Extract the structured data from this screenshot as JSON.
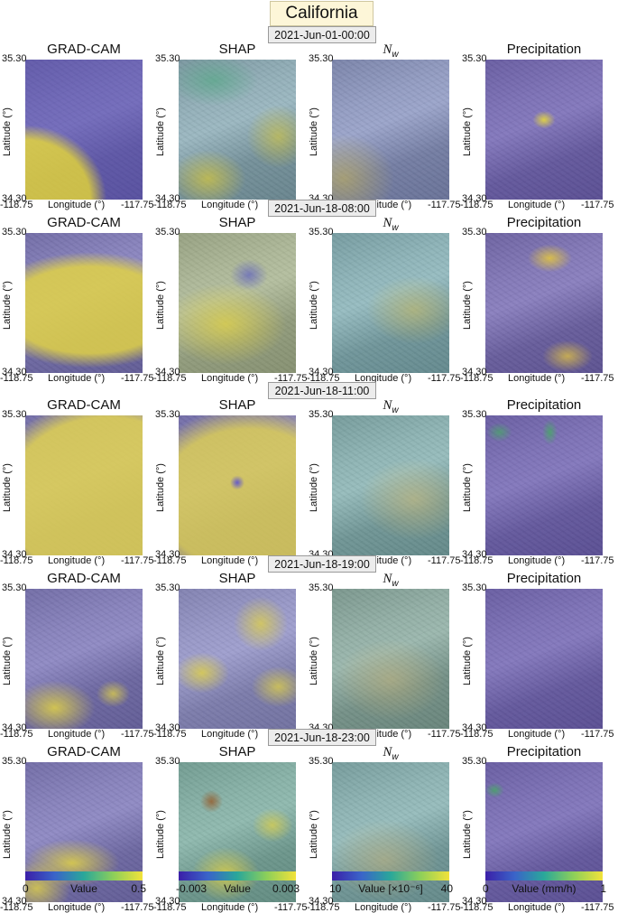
{
  "title": "California",
  "panel_titles": [
    "GRAD-CAM",
    "SHAP",
    "N",
    "w",
    "Precipitation"
  ],
  "axes": {
    "lat_top": "35.30",
    "lat_bottom": "34.30",
    "ylabel": "Latitude (°)",
    "lon_left": "-118.75",
    "lon_right": "-117.75",
    "xlabel": "Longitude (°)"
  },
  "rows": [
    {
      "timestamp": "2021-Jun-01-00:00"
    },
    {
      "timestamp": "2021-Jun-18-08:00"
    },
    {
      "timestamp": "2021-Jun-18-11:00"
    },
    {
      "timestamp": "2021-Jun-18-19:00"
    },
    {
      "timestamp": "2021-Jun-18-23:00"
    }
  ],
  "colorbars": [
    {
      "min": "0",
      "label": "Value",
      "max": "0.5"
    },
    {
      "min": "-0.003",
      "label": "Value",
      "max": "0.003"
    },
    {
      "min": "10",
      "label": "Value [×10⁻⁶]",
      "max": "40"
    },
    {
      "min": "0",
      "label": "Value (mm/h)",
      "max": "1"
    }
  ],
  "colors": {
    "viridis_low": "#3b1fa8",
    "viridis_mid": "#2aa79a",
    "viridis_high": "#f2e23a",
    "title_bg": "#fdf6d8",
    "timestamp_bg": "#ececec"
  }
}
